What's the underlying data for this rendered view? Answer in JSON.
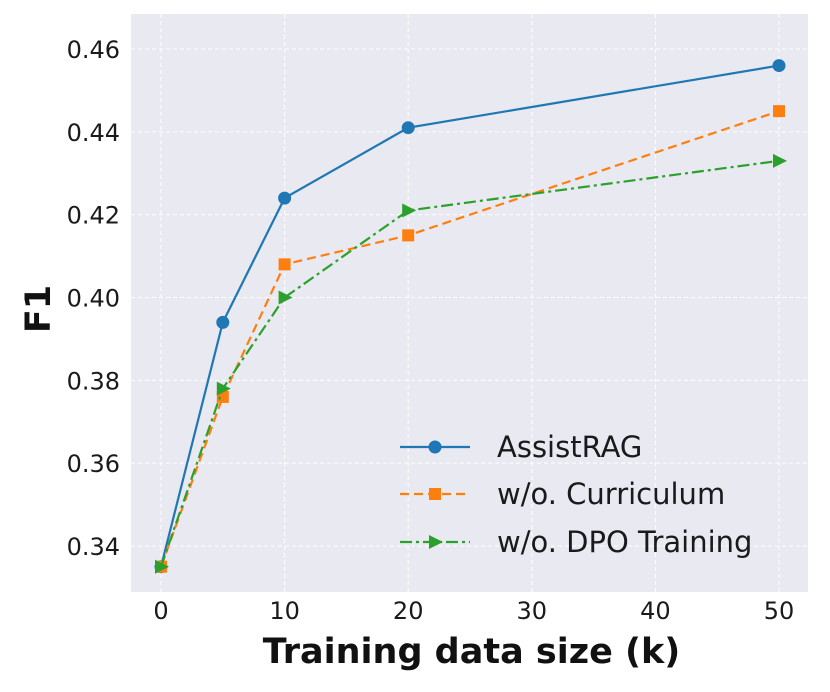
{
  "chart_data": {
    "type": "line",
    "title": "",
    "xlabel": "Training data size (k)",
    "ylabel": "F1",
    "x_categories": [
      "0",
      "5",
      "10",
      "20",
      "50"
    ],
    "x_tick_values": [
      0,
      10,
      20,
      30,
      40,
      50
    ],
    "x_tick_labels": [
      "0",
      "10",
      "20",
      "30",
      "40",
      "50"
    ],
    "y_ticks": [
      0.34,
      0.36,
      0.38,
      0.4,
      0.42,
      0.44,
      0.46
    ],
    "y_tick_labels": [
      "0.34",
      "0.36",
      "0.38",
      "0.40",
      "0.42",
      "0.44",
      "0.46"
    ],
    "ylim": [
      0.3293,
      0.4623
    ],
    "grid": true,
    "legend_position": "bottom-right",
    "series": [
      {
        "name": "AssistRAG",
        "color": "#1f77b4",
        "linestyle": "solid",
        "marker": "circle",
        "x": [
          0,
          5,
          10,
          20,
          50
        ],
        "values": [
          0.335,
          0.394,
          0.424,
          0.441,
          0.456
        ]
      },
      {
        "name": "w/o. Curriculum",
        "color": "#ff7f0e",
        "linestyle": "dashed",
        "marker": "square",
        "x": [
          0,
          5,
          10,
          20,
          50
        ],
        "values": [
          0.335,
          0.376,
          0.408,
          0.415,
          0.445
        ]
      },
      {
        "name": "w/o. DPO Training",
        "color": "#2ca02c",
        "linestyle": "dashdot",
        "marker": "triangle-right",
        "x": [
          0,
          5,
          10,
          20,
          50
        ],
        "values": [
          0.335,
          0.378,
          0.4,
          0.421,
          0.433
        ]
      }
    ]
  }
}
